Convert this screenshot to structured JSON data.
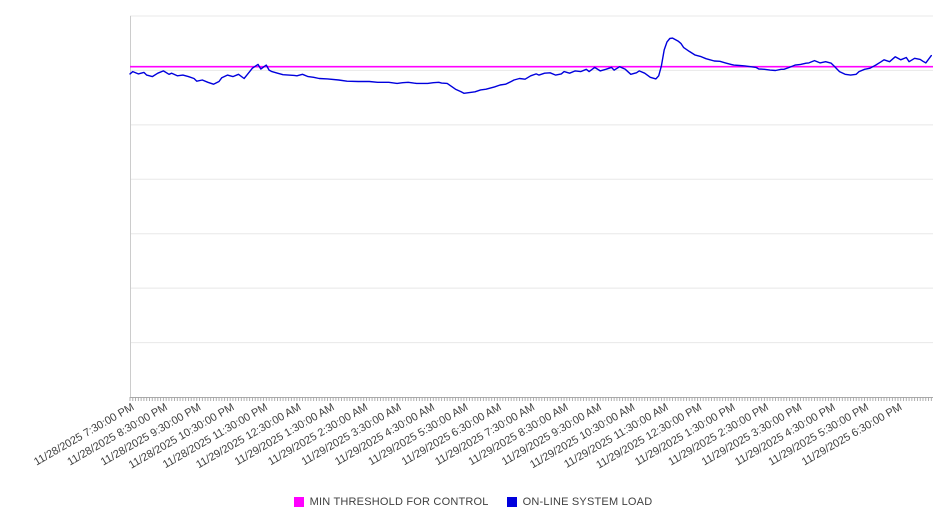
{
  "page": {
    "background": "#ffffff"
  },
  "chart_data": {
    "type": "line",
    "title": "",
    "x_axis": {
      "tick_labels": [
        "11/28/2025 7:30:00 PM",
        "11/28/2025 8:30:00 PM",
        "11/28/2025 9:30:00 PM",
        "11/28/2025 10:30:00 PM",
        "11/28/2025 11:30:00 PM",
        "11/29/2025 12:30:00 AM",
        "11/29/2025 1:30:00 AM",
        "11/29/2025 2:30:00 AM",
        "11/29/2025 3:30:00 AM",
        "11/29/2025 4:30:00 AM",
        "11/29/2025 5:30:00 AM",
        "11/29/2025 6:30:00 AM",
        "11/29/2025 7:30:00 AM",
        "11/29/2025 8:30:00 AM",
        "11/29/2025 9:30:00 AM",
        "11/29/2025 10:30:00 AM",
        "11/29/2025 11:30:00 AM",
        "11/29/2025 12:30:00 PM",
        "11/29/2025 1:30:00 PM",
        "11/29/2025 2:30:00 PM",
        "11/29/2025 3:30:00 PM",
        "11/29/2025 4:30:00 PM",
        "11/29/2025 5:30:00 PM",
        "11/29/2025 6:30:00 PM"
      ],
      "tick_start_minute": 5,
      "tick_interval_minutes": 60,
      "minor_tick_minutes": 5,
      "total_minutes": 1443
    },
    "y_axis": {
      "min": 0,
      "max": 100,
      "gridline_divisions": 7,
      "tick_labels": [],
      "labels_visible": false
    },
    "legend_position": "bottom-center",
    "grid": true,
    "series": [
      {
        "name": "MIN THRESHOLD FOR CONTROL",
        "color": "#ff00ff",
        "type": "constant",
        "value": 86.7
      },
      {
        "name": "ON-LINE SYSTEM LOAD",
        "color": "#0000dd",
        "type": "points",
        "points": [
          [
            0,
            84.8
          ],
          [
            5,
            85.4
          ],
          [
            15,
            84.8
          ],
          [
            25,
            85.2
          ],
          [
            30,
            84.5
          ],
          [
            40,
            84.1
          ],
          [
            50,
            85.0
          ],
          [
            60,
            85.6
          ],
          [
            70,
            84.7
          ],
          [
            75,
            85.0
          ],
          [
            85,
            84.3
          ],
          [
            95,
            84.5
          ],
          [
            105,
            84.1
          ],
          [
            115,
            83.6
          ],
          [
            120,
            82.9
          ],
          [
            130,
            83.2
          ],
          [
            140,
            82.6
          ],
          [
            150,
            82.1
          ],
          [
            160,
            82.8
          ],
          [
            165,
            83.8
          ],
          [
            175,
            84.5
          ],
          [
            185,
            84.1
          ],
          [
            195,
            84.7
          ],
          [
            205,
            83.6
          ],
          [
            210,
            84.5
          ],
          [
            220,
            86.3
          ],
          [
            230,
            87.3
          ],
          [
            235,
            86.1
          ],
          [
            245,
            87.1
          ],
          [
            250,
            85.8
          ],
          [
            255,
            85.4
          ],
          [
            265,
            85.0
          ],
          [
            275,
            84.6
          ],
          [
            285,
            84.5
          ],
          [
            295,
            84.4
          ],
          [
            300,
            84.3
          ],
          [
            310,
            84.7
          ],
          [
            320,
            84.1
          ],
          [
            330,
            83.9
          ],
          [
            340,
            83.6
          ],
          [
            355,
            83.5
          ],
          [
            375,
            83.2
          ],
          [
            390,
            82.9
          ],
          [
            410,
            82.8
          ],
          [
            430,
            82.8
          ],
          [
            445,
            82.6
          ],
          [
            465,
            82.6
          ],
          [
            480,
            82.3
          ],
          [
            490,
            82.5
          ],
          [
            500,
            82.6
          ],
          [
            510,
            82.4
          ],
          [
            515,
            82.3
          ],
          [
            535,
            82.3
          ],
          [
            545,
            82.5
          ],
          [
            555,
            82.6
          ],
          [
            560,
            82.4
          ],
          [
            570,
            82.3
          ],
          [
            585,
            80.8
          ],
          [
            595,
            80.1
          ],
          [
            600,
            79.7
          ],
          [
            610,
            79.9
          ],
          [
            620,
            80.1
          ],
          [
            630,
            80.6
          ],
          [
            640,
            80.8
          ],
          [
            645,
            81.0
          ],
          [
            655,
            81.4
          ],
          [
            665,
            81.9
          ],
          [
            675,
            82.1
          ],
          [
            685,
            82.8
          ],
          [
            690,
            83.2
          ],
          [
            700,
            83.6
          ],
          [
            710,
            83.4
          ],
          [
            720,
            84.3
          ],
          [
            730,
            84.8
          ],
          [
            735,
            84.5
          ],
          [
            745,
            85.0
          ],
          [
            755,
            85.1
          ],
          [
            765,
            84.5
          ],
          [
            775,
            84.8
          ],
          [
            780,
            85.4
          ],
          [
            790,
            85.0
          ],
          [
            800,
            85.6
          ],
          [
            810,
            85.4
          ],
          [
            820,
            86.0
          ],
          [
            825,
            85.4
          ],
          [
            835,
            86.5
          ],
          [
            845,
            85.6
          ],
          [
            855,
            86.0
          ],
          [
            865,
            86.5
          ],
          [
            870,
            85.8
          ],
          [
            880,
            86.7
          ],
          [
            890,
            86.0
          ],
          [
            900,
            84.7
          ],
          [
            910,
            85.1
          ],
          [
            915,
            85.6
          ],
          [
            925,
            85.0
          ],
          [
            935,
            83.9
          ],
          [
            945,
            83.5
          ],
          [
            950,
            84.3
          ],
          [
            955,
            86.9
          ],
          [
            960,
            91.1
          ],
          [
            965,
            93.2
          ],
          [
            970,
            94.1
          ],
          [
            975,
            94.2
          ],
          [
            985,
            93.4
          ],
          [
            990,
            92.8
          ],
          [
            995,
            91.7
          ],
          [
            1005,
            90.7
          ],
          [
            1015,
            89.8
          ],
          [
            1025,
            89.4
          ],
          [
            1035,
            88.8
          ],
          [
            1040,
            88.6
          ],
          [
            1050,
            88.2
          ],
          [
            1060,
            88.1
          ],
          [
            1070,
            87.7
          ],
          [
            1080,
            87.3
          ],
          [
            1085,
            87.1
          ],
          [
            1095,
            87.0
          ],
          [
            1105,
            86.9
          ],
          [
            1115,
            86.7
          ],
          [
            1125,
            86.5
          ],
          [
            1130,
            86.1
          ],
          [
            1140,
            86.0
          ],
          [
            1150,
            85.8
          ],
          [
            1160,
            85.7
          ],
          [
            1170,
            86.0
          ],
          [
            1175,
            86.0
          ],
          [
            1185,
            86.5
          ],
          [
            1195,
            87.1
          ],
          [
            1205,
            87.3
          ],
          [
            1215,
            87.6
          ],
          [
            1220,
            87.7
          ],
          [
            1230,
            88.3
          ],
          [
            1240,
            87.7
          ],
          [
            1250,
            88.0
          ],
          [
            1260,
            87.6
          ],
          [
            1265,
            86.9
          ],
          [
            1275,
            85.4
          ],
          [
            1285,
            84.7
          ],
          [
            1295,
            84.5
          ],
          [
            1305,
            84.7
          ],
          [
            1310,
            85.4
          ],
          [
            1320,
            86.0
          ],
          [
            1330,
            86.3
          ],
          [
            1340,
            87.1
          ],
          [
            1350,
            88.0
          ],
          [
            1355,
            88.5
          ],
          [
            1365,
            88.0
          ],
          [
            1375,
            89.3
          ],
          [
            1385,
            88.5
          ],
          [
            1395,
            89.1
          ],
          [
            1400,
            88.0
          ],
          [
            1410,
            88.9
          ],
          [
            1420,
            88.6
          ],
          [
            1425,
            88.1
          ],
          [
            1430,
            87.7
          ],
          [
            1440,
            89.6
          ]
        ]
      }
    ]
  },
  "legend": {
    "items": [
      {
        "label": "MIN THRESHOLD FOR CONTROL",
        "color": "#ff00ff"
      },
      {
        "label": "ON-LINE SYSTEM LOAD",
        "color": "#0000dd"
      }
    ]
  }
}
